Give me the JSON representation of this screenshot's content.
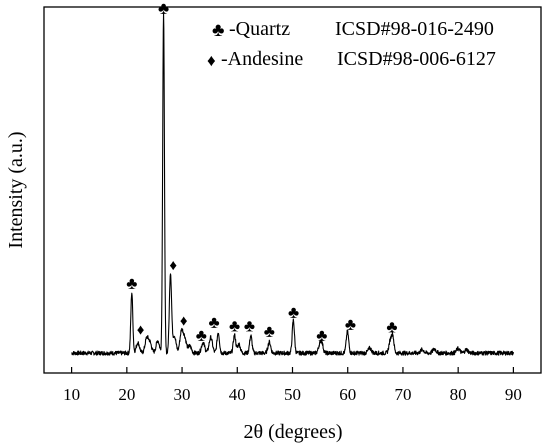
{
  "chart_data": {
    "type": "line",
    "xlabel": "2θ (degrees)",
    "ylabel": "Intensity (a.u.)",
    "xlim": [
      5,
      95
    ],
    "ylim": [
      0,
      100
    ],
    "x_ticks": [
      10,
      20,
      30,
      40,
      50,
      60,
      70,
      80,
      90
    ],
    "y_ticks_shown": false,
    "legend": {
      "placement": "top-right",
      "entries": [
        {
          "symbol": "♣",
          "name": "Quartz",
          "label": "-Quartz",
          "ref": "ICSD#98-016-2490"
        },
        {
          "symbol": "♦",
          "name": "Andesine",
          "label": "-Andesine",
          "ref": "ICSD#98-006-6127"
        }
      ]
    },
    "baseline": 2,
    "peaks": [
      {
        "x": 20.9,
        "y": 17.5,
        "w": 0.18
      },
      {
        "x": 22.0,
        "y": 3.0,
        "w": 0.3
      },
      {
        "x": 23.6,
        "y": 4.2,
        "w": 0.3
      },
      {
        "x": 24.2,
        "y": 2.8,
        "w": 0.3
      },
      {
        "x": 25.6,
        "y": 3.6,
        "w": 0.3
      },
      {
        "x": 26.65,
        "y": 98.0,
        "w": 0.16
      },
      {
        "x": 27.9,
        "y": 23.0,
        "w": 0.2
      },
      {
        "x": 28.6,
        "y": 5.0,
        "w": 0.3
      },
      {
        "x": 29.9,
        "y": 6.2,
        "w": 0.3
      },
      {
        "x": 30.5,
        "y": 4.0,
        "w": 0.3
      },
      {
        "x": 31.4,
        "y": 2.0,
        "w": 0.3
      },
      {
        "x": 33.8,
        "y": 3.0,
        "w": 0.3
      },
      {
        "x": 35.2,
        "y": 4.5,
        "w": 0.3
      },
      {
        "x": 36.55,
        "y": 6.0,
        "w": 0.22
      },
      {
        "x": 39.5,
        "y": 5.2,
        "w": 0.22
      },
      {
        "x": 40.3,
        "y": 2.6,
        "w": 0.25
      },
      {
        "x": 42.45,
        "y": 5.0,
        "w": 0.22
      },
      {
        "x": 45.8,
        "y": 3.2,
        "w": 0.25
      },
      {
        "x": 50.15,
        "y": 9.5,
        "w": 0.2
      },
      {
        "x": 54.9,
        "y": 2.0,
        "w": 0.25
      },
      {
        "x": 55.3,
        "y": 2.8,
        "w": 0.25
      },
      {
        "x": 59.95,
        "y": 6.2,
        "w": 0.22
      },
      {
        "x": 64.0,
        "y": 1.4,
        "w": 0.3
      },
      {
        "x": 67.7,
        "y": 3.4,
        "w": 0.25
      },
      {
        "x": 68.15,
        "y": 4.8,
        "w": 0.22
      },
      {
        "x": 73.5,
        "y": 1.0,
        "w": 0.3
      },
      {
        "x": 75.7,
        "y": 1.2,
        "w": 0.3
      },
      {
        "x": 80.0,
        "y": 1.3,
        "w": 0.3
      },
      {
        "x": 81.5,
        "y": 1.0,
        "w": 0.3
      }
    ],
    "peak_markers": [
      {
        "x": 20.9,
        "y": 20.5,
        "symbol": "♣",
        "phase": "Quartz"
      },
      {
        "x": 22.5,
        "y": 7.3,
        "symbol": "♦",
        "phase": "Andesine"
      },
      {
        "x": 26.65,
        "y": 100.0,
        "symbol": "♣",
        "phase": "Quartz"
      },
      {
        "x": 28.4,
        "y": 26.0,
        "symbol": "♦",
        "phase": "Andesine"
      },
      {
        "x": 30.3,
        "y": 10.0,
        "symbol": "♦",
        "phase": "Andesine"
      },
      {
        "x": 33.5,
        "y": 5.5,
        "symbol": "♣",
        "phase": "Quartz"
      },
      {
        "x": 35.8,
        "y": 9.2,
        "symbol": "♣",
        "phase": "Quartz"
      },
      {
        "x": 39.5,
        "y": 8.2,
        "symbol": "♣",
        "phase": "Quartz"
      },
      {
        "x": 42.2,
        "y": 8.2,
        "symbol": "♣",
        "phase": "Quartz"
      },
      {
        "x": 45.8,
        "y": 6.6,
        "symbol": "♣",
        "phase": "Quartz"
      },
      {
        "x": 50.2,
        "y": 12.2,
        "symbol": "♣",
        "phase": "Quartz"
      },
      {
        "x": 55.3,
        "y": 5.5,
        "symbol": "♣",
        "phase": "Quartz"
      },
      {
        "x": 60.5,
        "y": 8.7,
        "symbol": "♣",
        "phase": "Quartz"
      },
      {
        "x": 68.0,
        "y": 8.0,
        "symbol": "♣",
        "phase": "Quartz"
      }
    ],
    "colors": {
      "line": "#000000",
      "axes": "#000000",
      "background": "#ffffff"
    }
  }
}
